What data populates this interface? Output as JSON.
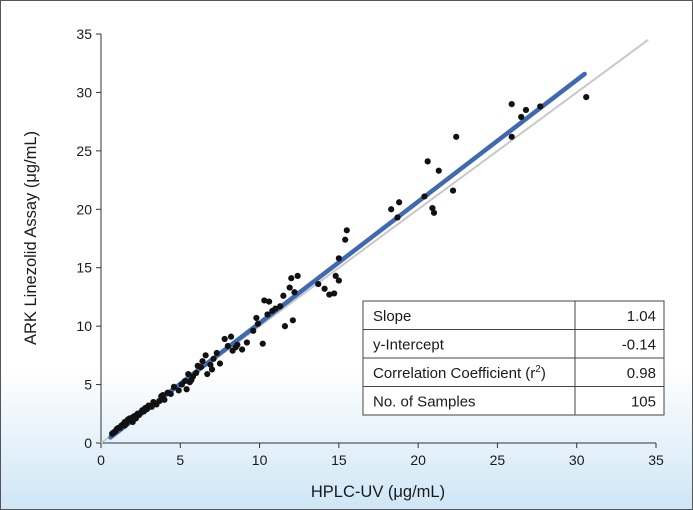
{
  "colors": {
    "background_top": "#ffffff",
    "background_bottom": "#cfe6f6",
    "regression_line": "#3f69b2",
    "identity_line": "#c8c8c8",
    "points": "#111111"
  },
  "chart_data": {
    "type": "scatter",
    "xlabel": "HPLC-UV (μg/mL)",
    "ylabel": "ARK Linezolid Assay (μg/mL)",
    "xlim": [
      0,
      35
    ],
    "ylim": [
      0,
      35
    ],
    "xticks": [
      0,
      5,
      10,
      15,
      20,
      25,
      30,
      35
    ],
    "yticks": [
      0,
      5,
      10,
      15,
      20,
      25,
      30,
      35
    ],
    "grid": false,
    "regression_line": {
      "slope": 1.04,
      "intercept": -0.14,
      "x_range": [
        0.6,
        30.5
      ]
    },
    "identity_line": {
      "slope": 1,
      "intercept": 0,
      "x_range": [
        0,
        34.5
      ]
    },
    "stats_table": [
      {
        "label": "Slope",
        "value": "1.04"
      },
      {
        "label": "y-Intercept",
        "value": "-0.14"
      },
      {
        "label": "Correlation Coefficient (r",
        "label_sup": "2",
        "label_after": ")",
        "value": "0.98"
      },
      {
        "label": "No. of Samples",
        "value": "105"
      }
    ],
    "points": [
      [
        0.7,
        0.8
      ],
      [
        0.8,
        0.9
      ],
      [
        0.9,
        1.0
      ],
      [
        1.0,
        1.2
      ],
      [
        1.1,
        1.3
      ],
      [
        1.2,
        1.3
      ],
      [
        1.3,
        1.5
      ],
      [
        1.4,
        1.6
      ],
      [
        1.5,
        1.8
      ],
      [
        1.6,
        1.7
      ],
      [
        1.7,
        2.0
      ],
      [
        1.8,
        2.1
      ],
      [
        1.9,
        1.9
      ],
      [
        2.0,
        2.2
      ],
      [
        2.1,
        2.3
      ],
      [
        2.2,
        2.1
      ],
      [
        2.3,
        2.5
      ],
      [
        2.4,
        2.4
      ],
      [
        2.5,
        2.6
      ],
      [
        2.6,
        2.8
      ],
      [
        2.7,
        2.7
      ],
      [
        2.8,
        3.0
      ],
      [
        2.9,
        2.9
      ],
      [
        3.0,
        3.2
      ],
      [
        3.2,
        3.1
      ],
      [
        3.3,
        3.5
      ],
      [
        3.5,
        3.3
      ],
      [
        3.7,
        3.6
      ],
      [
        3.8,
        4.0
      ],
      [
        4.0,
        3.7
      ],
      [
        4.2,
        4.3
      ],
      [
        4.4,
        4.2
      ],
      [
        4.9,
        4.5
      ],
      [
        5.1,
        5.0
      ],
      [
        5.3,
        5.3
      ],
      [
        5.4,
        4.6
      ],
      [
        5.5,
        5.9
      ],
      [
        5.7,
        5.4
      ],
      [
        5.8,
        5.7
      ],
      [
        6.0,
        6.0
      ],
      [
        6.1,
        6.6
      ],
      [
        6.3,
        6.5
      ],
      [
        6.4,
        7.0
      ],
      [
        6.6,
        7.5
      ],
      [
        6.7,
        5.9
      ],
      [
        6.9,
        6.7
      ],
      [
        7.1,
        7.2
      ],
      [
        7.3,
        7.7
      ],
      [
        7.5,
        6.8
      ],
      [
        7.8,
        8.9
      ],
      [
        8.2,
        9.1
      ],
      [
        8.3,
        7.9
      ],
      [
        8.5,
        8.2
      ],
      [
        8.6,
        8.4
      ],
      [
        8.9,
        8.0
      ],
      [
        9.2,
        8.6
      ],
      [
        9.6,
        9.6
      ],
      [
        9.8,
        10.7
      ],
      [
        9.9,
        10.2
      ],
      [
        10.2,
        8.5
      ],
      [
        10.3,
        12.2
      ],
      [
        10.5,
        11.0
      ],
      [
        10.6,
        12.1
      ],
      [
        10.8,
        11.3
      ],
      [
        11.3,
        11.7
      ],
      [
        11.5,
        12.6
      ],
      [
        11.6,
        10.0
      ],
      [
        11.9,
        13.3
      ],
      [
        12.0,
        14.1
      ],
      [
        12.1,
        10.5
      ],
      [
        12.4,
        14.3
      ],
      [
        12.2,
        12.9
      ],
      [
        13.7,
        13.6
      ],
      [
        14.1,
        13.2
      ],
      [
        14.4,
        12.7
      ],
      [
        14.7,
        12.8
      ],
      [
        14.8,
        14.3
      ],
      [
        15.0,
        15.8
      ],
      [
        15.0,
        13.9
      ],
      [
        15.4,
        17.4
      ],
      [
        15.5,
        18.2
      ],
      [
        18.3,
        20.0
      ],
      [
        18.7,
        19.3
      ],
      [
        18.8,
        20.6
      ],
      [
        20.4,
        21.1
      ],
      [
        20.6,
        24.1
      ],
      [
        20.9,
        20.1
      ],
      [
        21.0,
        19.7
      ],
      [
        21.3,
        23.3
      ],
      [
        22.2,
        21.6
      ],
      [
        22.4,
        26.2
      ],
      [
        25.9,
        29.0
      ],
      [
        25.9,
        26.2
      ],
      [
        26.5,
        27.9
      ],
      [
        26.8,
        28.5
      ],
      [
        27.7,
        28.8
      ],
      [
        30.6,
        29.6
      ],
      [
        1.5,
        1.5
      ],
      [
        2.0,
        1.8
      ],
      [
        3.9,
        4.1
      ],
      [
        5.6,
        5.2
      ],
      [
        7.0,
        6.3
      ],
      [
        8.0,
        8.3
      ],
      [
        4.6,
        4.8
      ],
      [
        11.0,
        11.5
      ]
    ]
  }
}
